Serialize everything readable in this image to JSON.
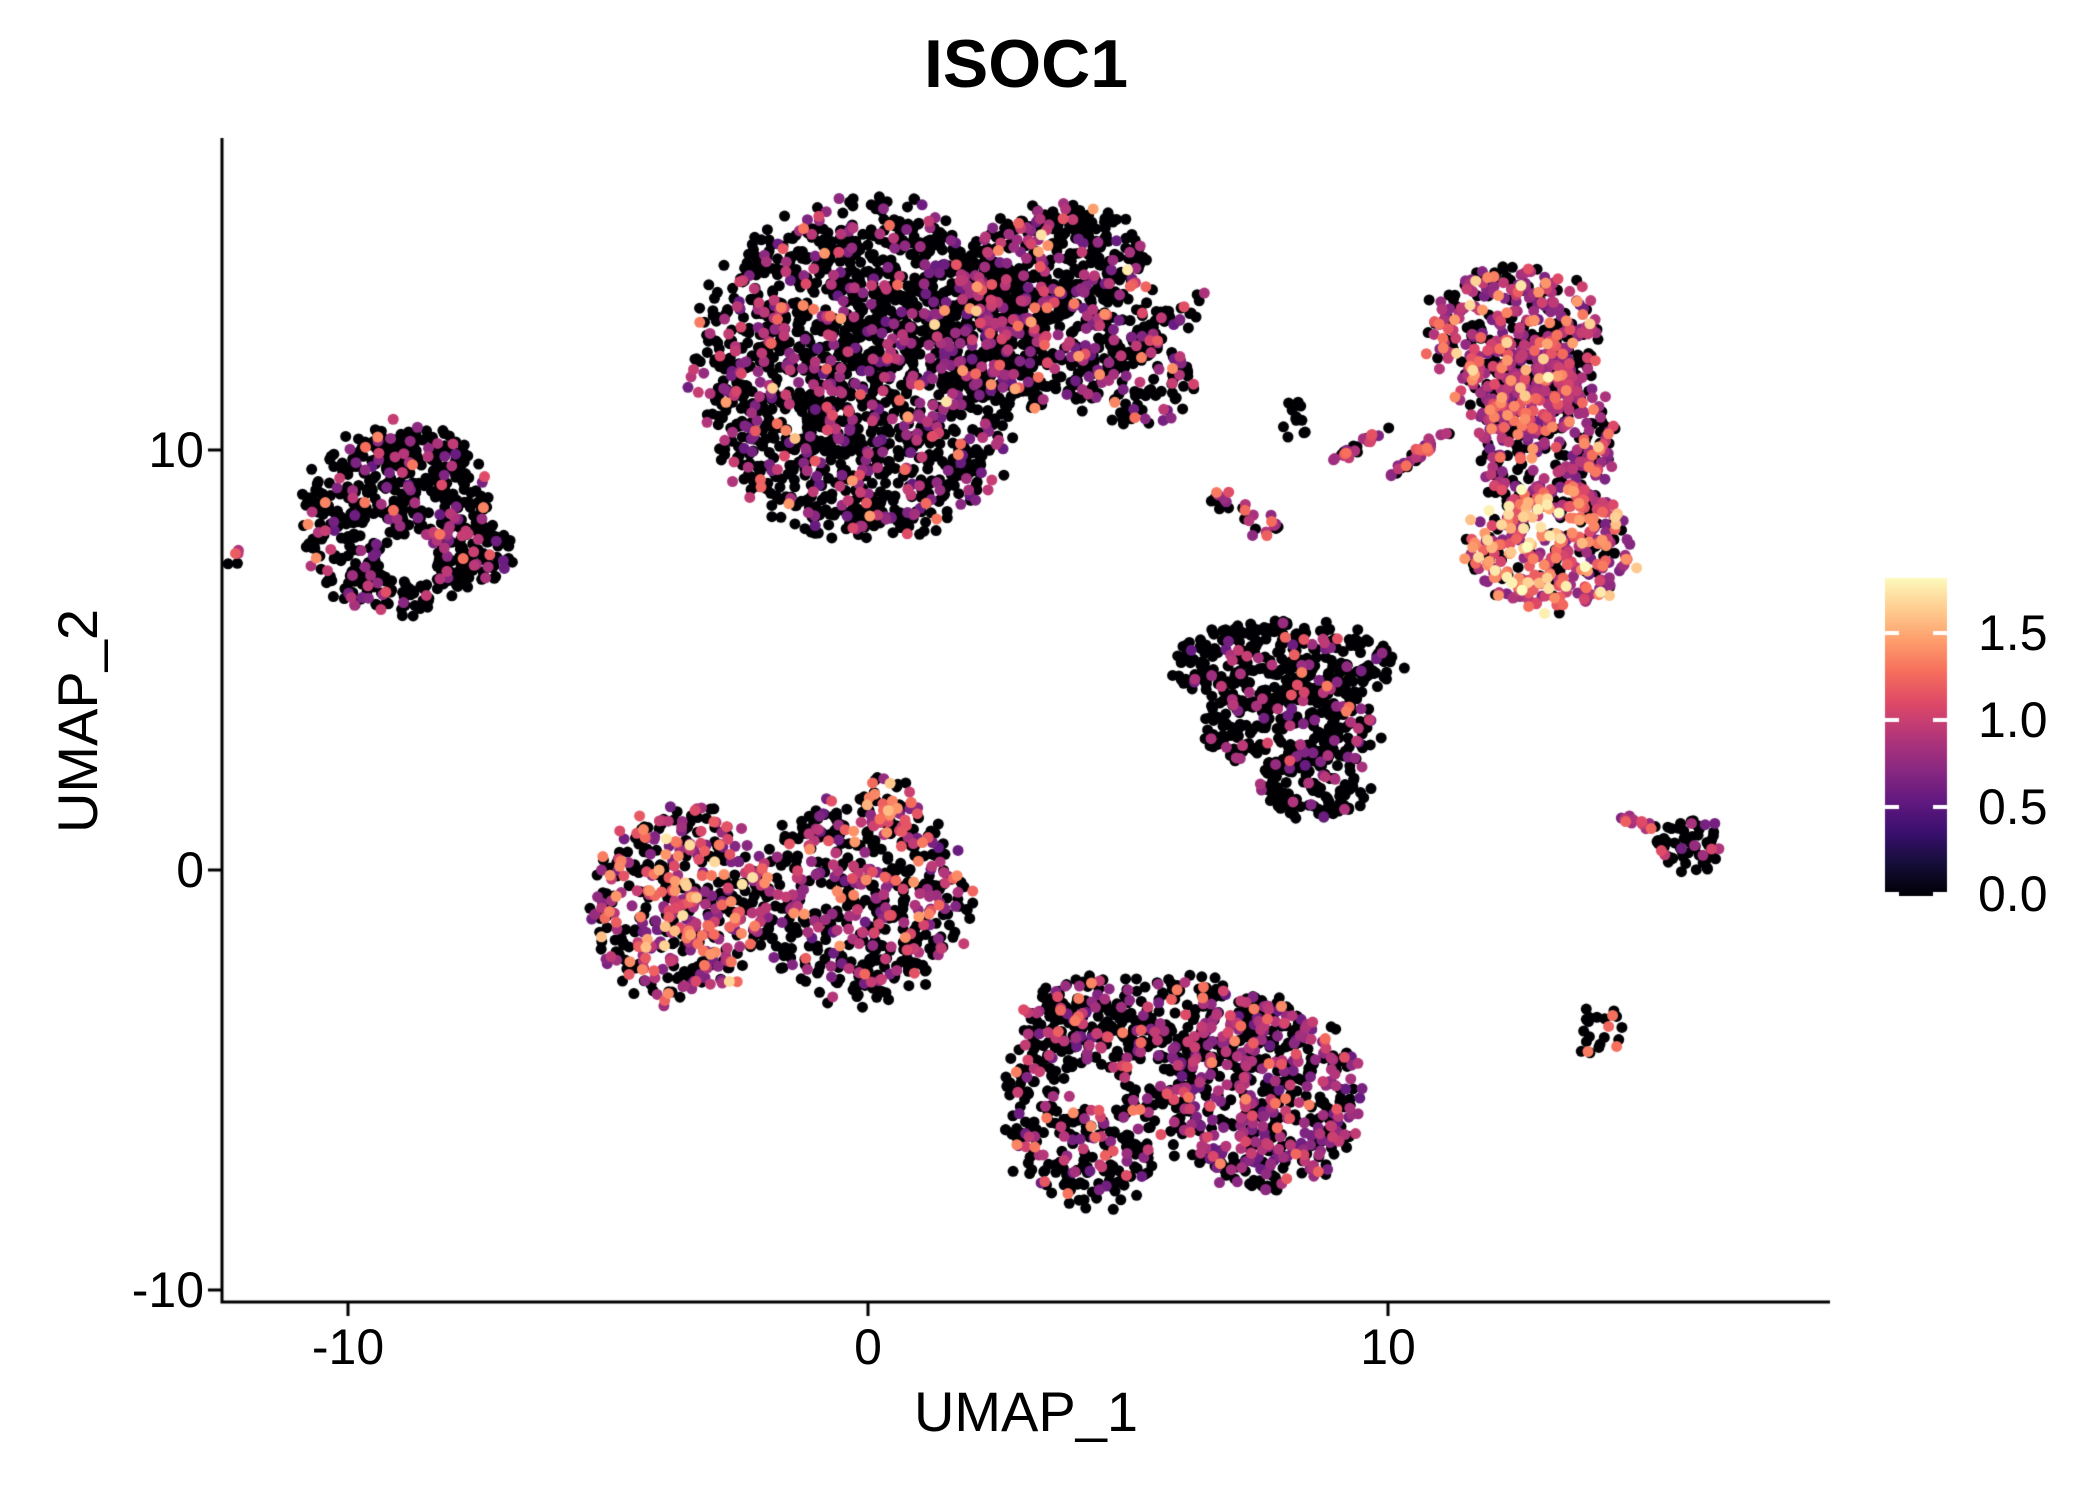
{
  "title": "ISOC1",
  "axes": {
    "x_label": "UMAP_1",
    "y_label": "UMAP_2",
    "x_tick_labels": [
      "-10",
      "0",
      "10"
    ],
    "y_tick_labels": [
      "10",
      "0",
      "-10"
    ]
  },
  "chart_data": {
    "type": "scatter",
    "title": "ISOC1",
    "xlabel": "UMAP_1",
    "ylabel": "UMAP_2",
    "x_ticks": [
      -10,
      0,
      10
    ],
    "y_ticks": [
      10,
      0,
      -10
    ],
    "xlim": [
      -12.42,
      18.5
    ],
    "ylim": [
      -10.29,
      17.38
    ],
    "grid": false,
    "point_radius_px": 5.5,
    "seed": 1337,
    "colorbar": {
      "position": "right",
      "tick_labels": [
        "0.0",
        "0.5",
        "1.0",
        "1.5"
      ],
      "tick_values": [
        0.0,
        0.5,
        1.0,
        1.5
      ],
      "vmin": 0.0,
      "vmax": 1.83,
      "colormap": "magma",
      "stops": [
        [
          0.0,
          "#000004"
        ],
        [
          0.1,
          "#150e38"
        ],
        [
          0.2,
          "#3b0f70"
        ],
        [
          0.3,
          "#641a80"
        ],
        [
          0.4,
          "#8c2981"
        ],
        [
          0.5,
          "#b5367a"
        ],
        [
          0.6,
          "#de4968"
        ],
        [
          0.7,
          "#f66e5c"
        ],
        [
          0.8,
          "#fe9f6d"
        ],
        [
          0.9,
          "#fecf92"
        ],
        [
          1.0,
          "#fcfdbf"
        ]
      ]
    },
    "expression_profiles": {
      "top": {
        "p_zero": 0.74,
        "bands": [
          [
            0.55,
            1.0,
            0.82
          ],
          [
            1.0,
            1.45,
            0.15
          ],
          [
            1.45,
            1.8,
            0.03
          ]
        ]
      },
      "allblack": {
        "p_zero": 0.92,
        "bands": [
          [
            0.6,
            0.9,
            1.0
          ]
        ]
      },
      "purpleline": {
        "p_zero": 0.22,
        "bands": [
          [
            0.65,
            1.0,
            0.85
          ],
          [
            1.0,
            1.3,
            0.15
          ]
        ]
      },
      "purpleline2": {
        "p_zero": 0.3,
        "bands": [
          [
            0.65,
            1.0,
            0.75
          ],
          [
            1.0,
            1.35,
            0.25
          ]
        ]
      },
      "warmspeck": {
        "p_zero": 0.45,
        "bands": [
          [
            0.7,
            1.0,
            0.5
          ],
          [
            1.0,
            1.35,
            0.5
          ]
        ]
      },
      "bananaupper": {
        "p_zero": 0.36,
        "bands": [
          [
            0.6,
            1.0,
            0.7
          ],
          [
            1.0,
            1.45,
            0.26
          ],
          [
            1.45,
            1.8,
            0.04
          ]
        ]
      },
      "bananahot": {
        "p_zero": 0.2,
        "bands": [
          [
            0.6,
            1.0,
            0.3
          ],
          [
            1.0,
            1.45,
            0.5
          ],
          [
            1.45,
            1.85,
            0.2
          ]
        ]
      },
      "low": {
        "p_zero": 0.78,
        "bands": [
          [
            0.55,
            1.0,
            0.85
          ],
          [
            1.0,
            1.4,
            0.15
          ]
        ]
      },
      "warmleft": {
        "p_zero": 0.46,
        "bands": [
          [
            0.6,
            1.0,
            0.55
          ],
          [
            1.0,
            1.45,
            0.38
          ],
          [
            1.45,
            1.75,
            0.07
          ]
        ]
      },
      "midright": {
        "p_zero": 0.68,
        "bands": [
          [
            0.55,
            1.0,
            0.75
          ],
          [
            1.0,
            1.45,
            0.25
          ]
        ]
      },
      "tipwarm": {
        "p_zero": 0.35,
        "bands": [
          [
            0.6,
            1.05,
            0.4
          ],
          [
            1.05,
            1.5,
            0.5
          ],
          [
            1.5,
            1.7,
            0.1
          ]
        ]
      },
      "sparse": {
        "p_zero": 0.84,
        "bands": [
          [
            0.55,
            1.0,
            0.9
          ],
          [
            1.0,
            1.35,
            0.1
          ]
        ]
      },
      "bottomleft": {
        "p_zero": 0.74,
        "bands": [
          [
            0.55,
            1.0,
            0.7
          ],
          [
            1.0,
            1.4,
            0.3
          ]
        ]
      },
      "midright2": {
        "p_zero": 0.55,
        "bands": [
          [
            0.55,
            1.0,
            0.85
          ],
          [
            1.0,
            1.4,
            0.15
          ]
        ]
      },
      "brspeck": {
        "p_zero": 0.72,
        "bands": [
          [
            1.05,
            1.35,
            1.0
          ]
        ]
      }
    },
    "clusters": [
      {
        "name": "top-main",
        "profile": "top",
        "blobs": [
          {
            "cx": -0.06,
            "cy": 11.9,
            "rx": 3.2,
            "ry": 4.0,
            "rot": 0,
            "n": 1700
          },
          {
            "cx": 2.35,
            "cy": 12.9,
            "rx": 1.5,
            "ry": 1.6,
            "rot": 0,
            "n": 280
          },
          {
            "cx": 3.69,
            "cy": 14.2,
            "rx": 1.73,
            "ry": 1.71,
            "rot": 0,
            "n": 380
          },
          {
            "cx": 4.15,
            "cy": 14.6,
            "rx": 0.35,
            "ry": 0.95,
            "rot": 0,
            "n": 25
          },
          {
            "cx": 4.56,
            "cy": 12.26,
            "rx": 2.31,
            "ry": 0.55,
            "rot": 35,
            "n": 130
          }
        ]
      },
      {
        "name": "blob-right-of-top",
        "profile": "top",
        "blobs": [
          {
            "cx": 5.04,
            "cy": 11.7,
            "rx": 1.25,
            "ry": 1.14,
            "rot": 0,
            "n": 120
          }
        ]
      },
      {
        "name": "speck-black",
        "profile": "allblack",
        "blobs": [
          {
            "cx": 8.21,
            "cy": 10.7,
            "rx": 0.3,
            "ry": 0.5,
            "rot": 0,
            "n": 12
          }
        ]
      },
      {
        "name": "streak-1",
        "profile": "purpleline",
        "blobs": [
          {
            "cx": 9.46,
            "cy": 10.1,
            "rx": 0.75,
            "ry": 0.12,
            "rot": 38,
            "n": 26
          }
        ]
      },
      {
        "name": "streak-2",
        "profile": "purpleline2",
        "blobs": [
          {
            "cx": 10.55,
            "cy": 9.9,
            "rx": 0.85,
            "ry": 0.13,
            "rot": 42,
            "n": 32
          }
        ]
      },
      {
        "name": "speck-warm-1",
        "profile": "warmspeck",
        "blobs": [
          {
            "cx": 6.81,
            "cy": 8.81,
            "rx": 0.3,
            "ry": 0.3,
            "rot": 0,
            "n": 10
          }
        ]
      },
      {
        "name": "speck-purple",
        "profile": "purpleline",
        "blobs": [
          {
            "cx": 7.29,
            "cy": 8.52,
            "rx": 0.2,
            "ry": 0.22,
            "rot": 0,
            "n": 6
          }
        ]
      },
      {
        "name": "speck-warm-2",
        "profile": "warmspeck",
        "blobs": [
          {
            "cx": 7.63,
            "cy": 8.17,
            "rx": 0.3,
            "ry": 0.32,
            "rot": 0,
            "n": 10
          }
        ]
      },
      {
        "name": "right-banana",
        "profile": "bananaupper",
        "blobs": [
          {
            "cx": 12.44,
            "cy": 12.86,
            "rx": 1.69,
            "ry": 1.62,
            "rot": 0,
            "n": 320
          },
          {
            "cx": 12.54,
            "cy": 11.55,
            "rx": 1.3,
            "ry": 1.2,
            "rot": 0,
            "n": 150
          },
          {
            "cx": 13.02,
            "cy": 10.24,
            "rx": 1.38,
            "ry": 1.79,
            "rot": 0,
            "n": 320
          }
        ]
      },
      {
        "name": "right-banana-hot-lobe",
        "profile": "bananahot",
        "blobs": [
          {
            "cx": 13.12,
            "cy": 7.67,
            "rx": 1.69,
            "ry": 1.48,
            "rot": 0,
            "n": 330
          }
        ]
      },
      {
        "name": "left-cluster",
        "profile": "low",
        "holes": [
          {
            "cx": -8.81,
            "cy": 7.45,
            "r": 0.55
          }
        ],
        "blobs": [
          {
            "cx": -9.1,
            "cy": 8.33,
            "rx": 1.83,
            "ry": 2.25,
            "rot": 0,
            "n": 520
          },
          {
            "cx": -8.75,
            "cy": 10.0,
            "rx": 1.1,
            "ry": 0.6,
            "rot": 0,
            "n": 70
          },
          {
            "cx": -7.65,
            "cy": 7.5,
            "rx": 0.9,
            "ry": 0.75,
            "rot": 0,
            "n": 90
          }
        ]
      },
      {
        "name": "tiny-pair",
        "profile": "purpleline",
        "blobs": [
          {
            "cx": -12.23,
            "cy": 7.43,
            "rx": 0.22,
            "ry": 0.25,
            "rot": 0,
            "n": 5
          }
        ]
      },
      {
        "name": "midleft-west",
        "profile": "warmleft",
        "blobs": [
          {
            "cx": -3.62,
            "cy": -0.83,
            "rx": 1.7,
            "ry": 2.3,
            "rot": -5,
            "n": 470
          }
        ]
      },
      {
        "name": "midleft-east",
        "profile": "midright",
        "blobs": [
          {
            "cx": -0.15,
            "cy": -0.71,
            "rx": 2.05,
            "ry": 2.4,
            "rot": -5,
            "n": 520
          }
        ]
      },
      {
        "name": "midleft-tip",
        "profile": "tipwarm",
        "blobs": [
          {
            "cx": 0.42,
            "cy": 1.55,
            "rx": 0.55,
            "ry": 0.8,
            "rot": 25,
            "n": 40
          }
        ]
      },
      {
        "name": "triangle-cluster",
        "profile": "sparse",
        "blobs": [
          {
            "cx": 8.02,
            "cy": 4.88,
            "rx": 2.21,
            "ry": 1.07,
            "rot": 0,
            "n": 330
          },
          {
            "cx": 8.12,
            "cy": 3.33,
            "rx": 1.73,
            "ry": 0.95,
            "rot": 0,
            "n": 230
          },
          {
            "cx": 8.6,
            "cy": 2.02,
            "rx": 1.06,
            "ry": 0.83,
            "rot": 0,
            "n": 110
          }
        ]
      },
      {
        "name": "bottom-west",
        "profile": "bottomleft",
        "holes": [
          {
            "cx": 4.45,
            "cy": -5.2,
            "r": 0.5
          },
          {
            "cx": 5.3,
            "cy": -4.85,
            "r": 0.3
          }
        ],
        "blobs": [
          {
            "cx": 4.27,
            "cy": -5.48,
            "rx": 1.73,
            "ry": 2.62,
            "rot": 0,
            "n": 400
          },
          {
            "cx": 5.62,
            "cy": -3.57,
            "rx": 2.69,
            "ry": 1.14,
            "rot": -5,
            "n": 320
          }
        ]
      },
      {
        "name": "bottom-east",
        "profile": "midright2",
        "holes": [
          {
            "cx": 5.3,
            "cy": -4.85,
            "r": 0.3
          }
        ],
        "blobs": [
          {
            "cx": 7.63,
            "cy": -5.36,
            "rx": 1.83,
            "ry": 2.26,
            "rot": 0,
            "n": 520
          }
        ]
      },
      {
        "name": "right-small-head",
        "profile": "sparse",
        "blobs": [
          {
            "cx": 15.85,
            "cy": 0.6,
            "rx": 0.66,
            "ry": 0.68,
            "rot": 0,
            "n": 60
          }
        ]
      },
      {
        "name": "right-small-tail",
        "profile": "purpleline",
        "blobs": [
          {
            "cx": 14.81,
            "cy": 1.14,
            "rx": 0.5,
            "ry": 0.1,
            "rot": -22,
            "n": 12
          }
        ]
      },
      {
        "name": "tiny-bottom-right",
        "profile": "brspeck",
        "blobs": [
          {
            "cx": 14.08,
            "cy": -3.81,
            "rx": 0.55,
            "ry": 0.62,
            "rot": 0,
            "n": 22
          }
        ]
      }
    ]
  }
}
